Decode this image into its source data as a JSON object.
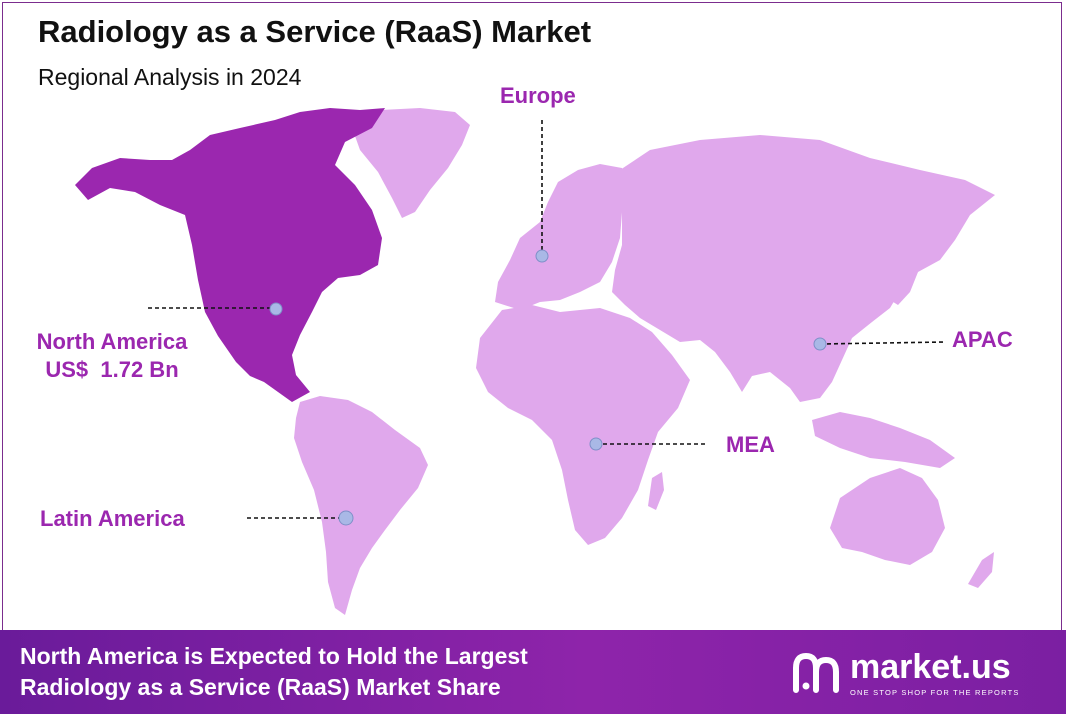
{
  "header": {
    "title": "Radiology as a Service (RaaS) Market",
    "subtitle": "Regional Analysis in 2024"
  },
  "regions": {
    "north_america": {
      "name": "North America",
      "value": "US$  1.72 Bn"
    },
    "europe": {
      "name": "Europe"
    },
    "apac": {
      "name": "APAC"
    },
    "mea": {
      "name": "MEA"
    },
    "latin_america": {
      "name": "Latin America"
    }
  },
  "footer": {
    "line1": "North America is Expected to Hold the Largest",
    "line2": "Radiology as a Service (RaaS) Market Share"
  },
  "logo": {
    "word": "market.us",
    "tagline": "ONE STOP SHOP FOR THE REPORTS"
  },
  "colors": {
    "highlight_region": "#9b27af",
    "other_regions": "#e0a8ec",
    "label": "#9b27af",
    "marker": "#a9b8e6"
  }
}
